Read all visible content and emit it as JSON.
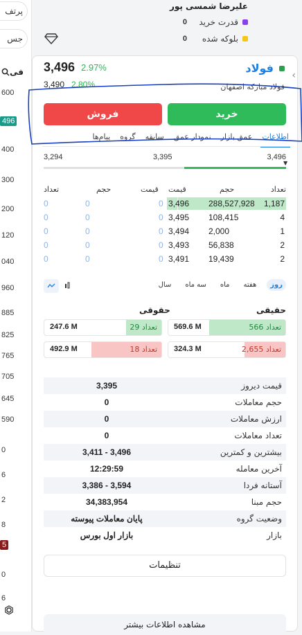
{
  "sidebar": {
    "pill_top": "پرتف",
    "pill_second": "جس",
    "search_label": "فی",
    "values": [
      "600",
      "400",
      "300",
      "200",
      "120",
      "040",
      "960",
      "885",
      "825",
      "765",
      "705",
      "645",
      "590",
      "0",
      "6",
      "2",
      "8",
      "0",
      "6"
    ],
    "badge_teal": "496",
    "badge_red": "5"
  },
  "header": {
    "user_name": "علیرضا شمسی پور",
    "legend": [
      {
        "label": "قدرت خرید",
        "value": "0",
        "color": "#8a3ff0"
      },
      {
        "label": "بلوکه شده",
        "value": "0",
        "color": "#f5c518"
      }
    ]
  },
  "symbol": {
    "name": "فولاد",
    "full_name": "فولاد مبارکه اصفهان",
    "last_price": "3,496",
    "last_change": "2.97%",
    "close_price": "3,490",
    "close_change": "2.80%"
  },
  "actions": {
    "buy": "خرید",
    "sell": "فروش"
  },
  "tabs": [
    "اطلاعات",
    "عمق بازار",
    "نمودار عمق",
    "سابقه",
    "گروه",
    "پیام‌ها"
  ],
  "range": {
    "low": "3,294",
    "mid": "3,395",
    "high": "3,496",
    "fill_from": 0.58,
    "fill_to": 1.0
  },
  "orderbook": {
    "headers": {
      "buy_count": "تعداد",
      "buy_vol": "حجم",
      "buy_price": "قیمت",
      "sell_price": "قیمت",
      "sell_vol": "حجم",
      "sell_count": "تعداد"
    },
    "rows": [
      {
        "bc": "1,187",
        "bv": "288,527,928",
        "bp": "3,496",
        "sp": "0",
        "sv": "0",
        "sc": "0"
      },
      {
        "bc": "4",
        "bv": "108,415",
        "bp": "3,495",
        "sp": "0",
        "sv": "0",
        "sc": "0"
      },
      {
        "bc": "1",
        "bv": "2,000",
        "bp": "3,494",
        "sp": "0",
        "sv": "0",
        "sc": "0"
      },
      {
        "bc": "2",
        "bv": "56,838",
        "bp": "3,493",
        "sp": "0",
        "sv": "0",
        "sc": "0"
      },
      {
        "bc": "2",
        "bv": "19,439",
        "bp": "3,491",
        "sp": "0",
        "sv": "0",
        "sc": "0"
      }
    ]
  },
  "periods": [
    "روز",
    "هفته",
    "ماه",
    "سه ماه",
    "سال"
  ],
  "realLegal": {
    "real_title": "حقیقی",
    "legal_title": "حقوقی",
    "real_buy": {
      "text": "تعداد 566",
      "vol": "569.6 M",
      "fill": 0.65
    },
    "real_sell": {
      "text": "تعداد 2,655",
      "vol": "324.3 M",
      "fill": 0.35
    },
    "legal_buy": {
      "text": "تعداد 29",
      "vol": "247.6 M",
      "fill": 0.3
    },
    "legal_sell": {
      "text": "تعداد 18",
      "vol": "492.9 M",
      "fill": 0.6
    }
  },
  "info": [
    {
      "k": "قیمت دیروز",
      "v": "3,395"
    },
    {
      "k": "حجم معاملات",
      "v": "0"
    },
    {
      "k": "ارزش معاملات",
      "v": "0"
    },
    {
      "k": "تعداد معاملات",
      "v": "0"
    },
    {
      "k": "بیشترین و کمترین",
      "v": "3,496 - 3,411"
    },
    {
      "k": "آخرین معامله",
      "v": "12:29:59"
    },
    {
      "k": "آستانه فردا",
      "v": "3,594 - 3,386"
    },
    {
      "k": "حجم مبنا",
      "v": "34,383,954"
    },
    {
      "k": "وضعیت گروه",
      "v": "پایان معاملات پیوسته"
    },
    {
      "k": "بازار",
      "v": "بازار اول بورس"
    }
  ],
  "buttons": {
    "settings": "تنظیمات",
    "more": "مشاهده اطلاعات بیشتر"
  },
  "colors": {
    "buy": "#2fbb5a",
    "sell": "#f04848",
    "accent": "#1e7fe0"
  }
}
